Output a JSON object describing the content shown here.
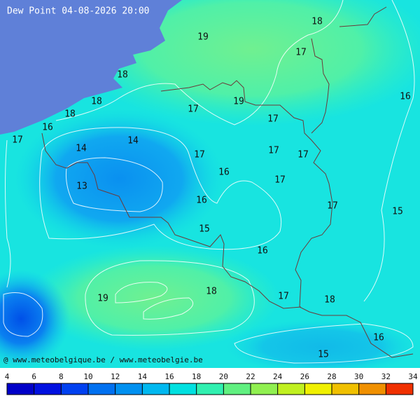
{
  "title": "Dew Point 04-08-2026 20:00",
  "credit": "@ www.meteobelgique.be / www.meteobelgie.be",
  "contour_labels": [
    19,
    18,
    17,
    18,
    18,
    18,
    17,
    19,
    17,
    16,
    16,
    17,
    14,
    14,
    17,
    17,
    17,
    16,
    17,
    13,
    16,
    17,
    15,
    15,
    16,
    19,
    18,
    17,
    18,
    16,
    15
  ],
  "colorbar": {
    "ticks": [
      4,
      6,
      8,
      10,
      12,
      14,
      16,
      18,
      20,
      22,
      24,
      26,
      28,
      30,
      32,
      34
    ],
    "colors": [
      "#0000c8",
      "#0010e0",
      "#0040f0",
      "#0070f0",
      "#0090f0",
      "#00b8f0",
      "#00e0e0",
      "#30f0b0",
      "#60f080",
      "#90f050",
      "#c0f020",
      "#f0f000",
      "#f0c000",
      "#f09000",
      "#f03000"
    ]
  }
}
